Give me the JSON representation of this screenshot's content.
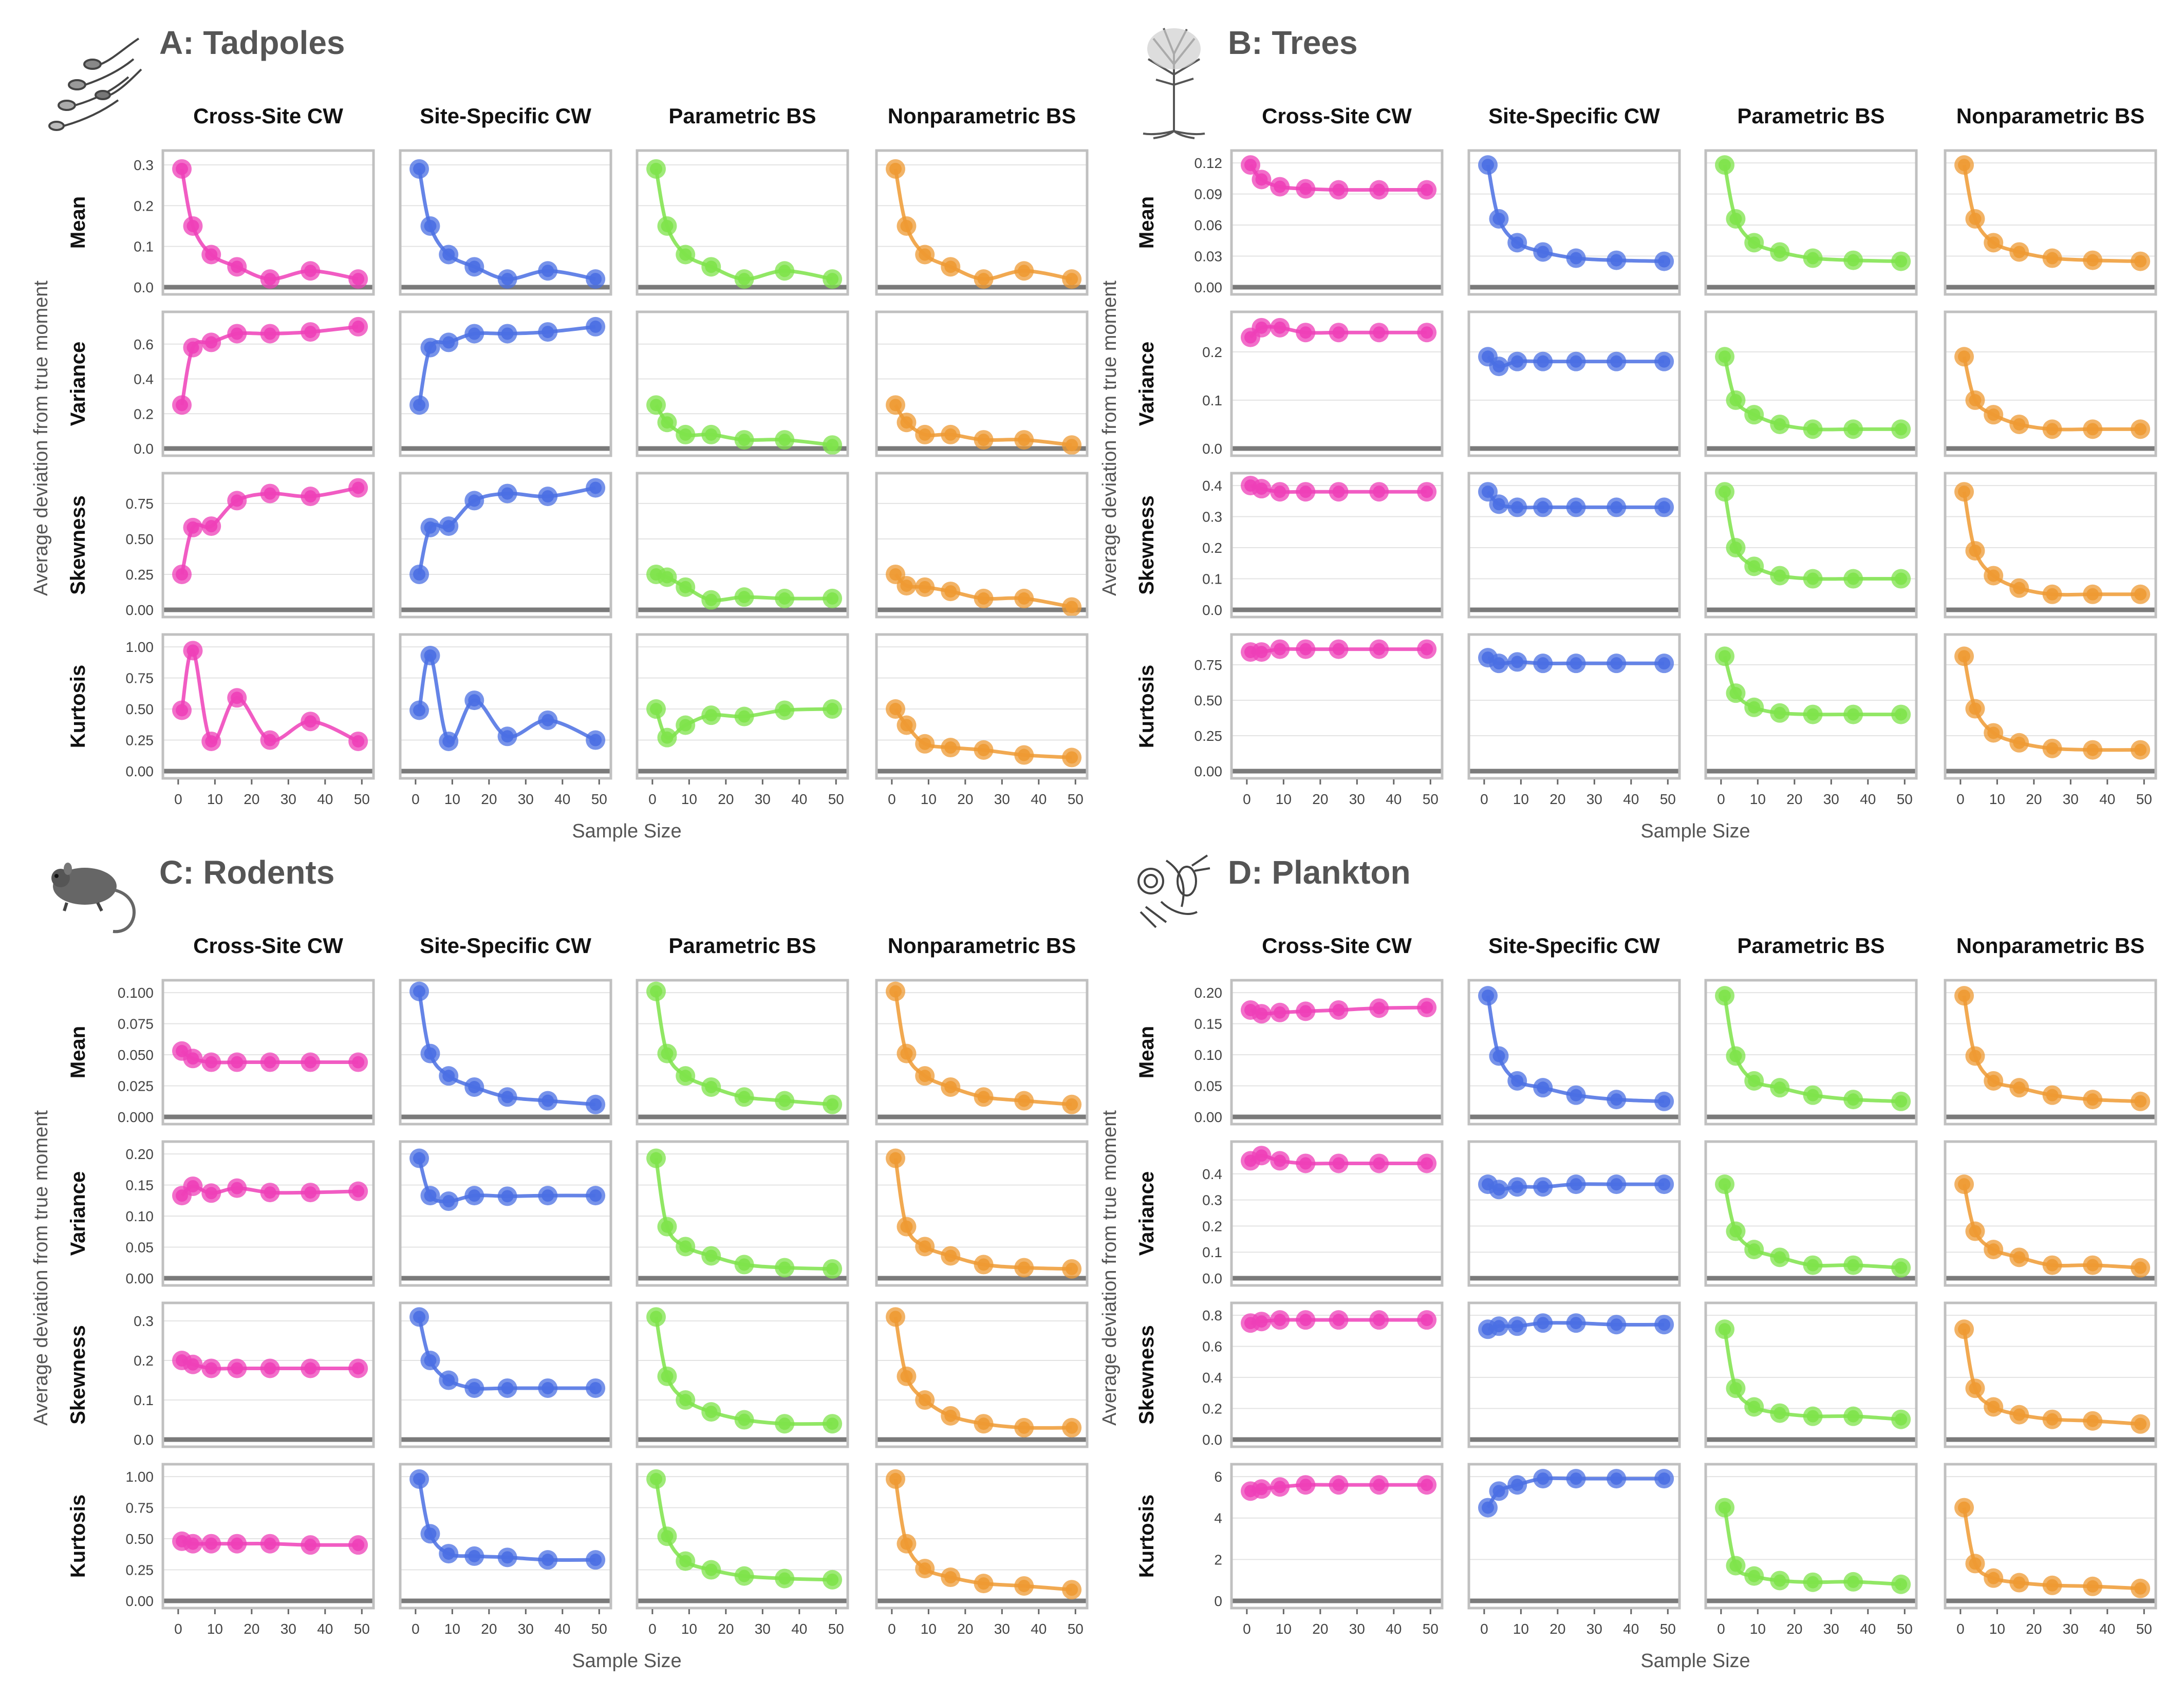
{
  "sample_sizes": [
    1,
    4,
    9,
    16,
    25,
    36,
    49
  ],
  "colors": {
    "Cross-Site CW": "#ee3fb8",
    "Site-Specific CW": "#4a6fe3",
    "Parametric BS": "#7ee34a",
    "Nonparametric BS": "#ee9a33"
  },
  "axes": {
    "x_label": "Sample Size",
    "y_label": "Average deviation from true moment",
    "x_ticks": [
      "0",
      "10",
      "20",
      "30",
      "40",
      "50"
    ]
  },
  "chart_data": [
    {
      "type": "line",
      "title": "A: Tadpoles",
      "icon": "tadpole-icon",
      "columns": [
        "Cross-Site CW",
        "Site-Specific CW",
        "Parametric BS",
        "Nonparametric BS"
      ],
      "rows": [
        {
          "name": "Mean",
          "ylim": [
            0,
            0.32
          ],
          "ticks": [
            0.0,
            0.1,
            0.2,
            0.3
          ],
          "tick_labels": [
            "0.0",
            "0.1",
            "0.2",
            "0.3"
          ],
          "series": [
            [
              0.29,
              0.15,
              0.08,
              0.05,
              0.02,
              0.04,
              0.02
            ],
            [
              0.29,
              0.15,
              0.08,
              0.05,
              0.02,
              0.04,
              0.02
            ],
            [
              0.29,
              0.15,
              0.08,
              0.05,
              0.02,
              0.04,
              0.02
            ],
            [
              0.29,
              0.15,
              0.08,
              0.05,
              0.02,
              0.04,
              0.02
            ]
          ]
        },
        {
          "name": "Variance",
          "ylim": [
            0,
            0.75
          ],
          "ticks": [
            0.0,
            0.2,
            0.4,
            0.6
          ],
          "tick_labels": [
            "0.0",
            "0.2",
            "0.4",
            "0.6"
          ],
          "series": [
            [
              0.25,
              0.58,
              0.61,
              0.66,
              0.66,
              0.67,
              0.7
            ],
            [
              0.25,
              0.58,
              0.61,
              0.66,
              0.66,
              0.67,
              0.7
            ],
            [
              0.25,
              0.15,
              0.08,
              0.08,
              0.05,
              0.05,
              0.02
            ],
            [
              0.25,
              0.15,
              0.08,
              0.08,
              0.05,
              0.05,
              0.02
            ]
          ]
        },
        {
          "name": "Skewness",
          "ylim": [
            0,
            0.92
          ],
          "ticks": [
            0.0,
            0.25,
            0.5,
            0.75
          ],
          "tick_labels": [
            "0.00",
            "0.25",
            "0.50",
            "0.75"
          ],
          "series": [
            [
              0.25,
              0.58,
              0.59,
              0.77,
              0.82,
              0.8,
              0.86
            ],
            [
              0.25,
              0.58,
              0.59,
              0.77,
              0.82,
              0.8,
              0.86
            ],
            [
              0.25,
              0.23,
              0.16,
              0.07,
              0.09,
              0.08,
              0.08
            ],
            [
              0.25,
              0.17,
              0.16,
              0.13,
              0.08,
              0.08,
              0.02
            ]
          ]
        },
        {
          "name": "Kurtosis",
          "ylim": [
            0,
            1.05
          ],
          "ticks": [
            0.0,
            0.25,
            0.5,
            0.75,
            1.0
          ],
          "tick_labels": [
            "0.00",
            "0.25",
            "0.50",
            "0.75",
            "1.00"
          ],
          "series": [
            [
              0.49,
              0.97,
              0.24,
              0.59,
              0.25,
              0.4,
              0.24
            ],
            [
              0.49,
              0.93,
              0.24,
              0.57,
              0.28,
              0.41,
              0.25
            ],
            [
              0.5,
              0.27,
              0.37,
              0.45,
              0.44,
              0.49,
              0.5
            ],
            [
              0.5,
              0.37,
              0.22,
              0.19,
              0.17,
              0.13,
              0.11
            ]
          ]
        }
      ]
    },
    {
      "type": "line",
      "title": "B: Trees",
      "icon": "tree-icon",
      "columns": [
        "Cross-Site CW",
        "Site-Specific CW",
        "Parametric BS",
        "Nonparametric BS"
      ],
      "rows": [
        {
          "name": "Mean",
          "ylim": [
            0,
            0.126
          ],
          "ticks": [
            0.0,
            0.03,
            0.06,
            0.09,
            0.12
          ],
          "tick_labels": [
            "0.00",
            "0.03",
            "0.06",
            "0.09",
            "0.12"
          ],
          "series": [
            [
              0.118,
              0.104,
              0.097,
              0.095,
              0.094,
              0.094,
              0.094
            ],
            [
              0.118,
              0.066,
              0.043,
              0.034,
              0.028,
              0.026,
              0.025
            ],
            [
              0.118,
              0.066,
              0.043,
              0.034,
              0.028,
              0.026,
              0.025
            ],
            [
              0.118,
              0.066,
              0.043,
              0.034,
              0.028,
              0.026,
              0.025
            ]
          ]
        },
        {
          "name": "Variance",
          "ylim": [
            0,
            0.27
          ],
          "ticks": [
            0.0,
            0.1,
            0.2
          ],
          "tick_labels": [
            "0.0",
            "0.1",
            "0.2"
          ],
          "series": [
            [
              0.23,
              0.25,
              0.25,
              0.24,
              0.24,
              0.24,
              0.24
            ],
            [
              0.19,
              0.17,
              0.18,
              0.18,
              0.18,
              0.18,
              0.18
            ],
            [
              0.19,
              0.1,
              0.07,
              0.05,
              0.04,
              0.04,
              0.04
            ],
            [
              0.19,
              0.1,
              0.07,
              0.05,
              0.04,
              0.04,
              0.04
            ]
          ]
        },
        {
          "name": "Skewness",
          "ylim": [
            0,
            0.42
          ],
          "ticks": [
            0.0,
            0.1,
            0.2,
            0.3,
            0.4
          ],
          "tick_labels": [
            "0.0",
            "0.1",
            "0.2",
            "0.3",
            "0.4"
          ],
          "series": [
            [
              0.4,
              0.39,
              0.38,
              0.38,
              0.38,
              0.38,
              0.38
            ],
            [
              0.38,
              0.34,
              0.33,
              0.33,
              0.33,
              0.33,
              0.33
            ],
            [
              0.38,
              0.2,
              0.14,
              0.11,
              0.1,
              0.1,
              0.1
            ],
            [
              0.38,
              0.19,
              0.11,
              0.07,
              0.05,
              0.05,
              0.05
            ]
          ]
        },
        {
          "name": "Kurtosis",
          "ylim": [
            0,
            0.92
          ],
          "ticks": [
            0.0,
            0.25,
            0.5,
            0.75
          ],
          "tick_labels": [
            "0.00",
            "0.25",
            "0.50",
            "0.75"
          ],
          "series": [
            [
              0.84,
              0.84,
              0.86,
              0.86,
              0.86,
              0.86,
              0.86
            ],
            [
              0.8,
              0.76,
              0.77,
              0.76,
              0.76,
              0.76,
              0.76
            ],
            [
              0.81,
              0.55,
              0.45,
              0.41,
              0.4,
              0.4,
              0.4
            ],
            [
              0.81,
              0.44,
              0.27,
              0.2,
              0.16,
              0.15,
              0.15
            ]
          ]
        }
      ]
    },
    {
      "type": "line",
      "title": "C: Rodents",
      "icon": "rodent-icon",
      "columns": [
        "Cross-Site CW",
        "Site-Specific CW",
        "Parametric BS",
        "Nonparametric BS"
      ],
      "rows": [
        {
          "name": "Mean",
          "ylim": [
            0,
            0.105
          ],
          "ticks": [
            0.0,
            0.025,
            0.05,
            0.075,
            0.1
          ],
          "tick_labels": [
            "0.000",
            "0.025",
            "0.050",
            "0.075",
            "0.100"
          ],
          "series": [
            [
              0.053,
              0.047,
              0.044,
              0.044,
              0.044,
              0.044,
              0.044
            ],
            [
              0.101,
              0.051,
              0.033,
              0.024,
              0.016,
              0.013,
              0.01
            ],
            [
              0.101,
              0.051,
              0.033,
              0.024,
              0.016,
              0.013,
              0.01
            ],
            [
              0.101,
              0.051,
              0.033,
              0.024,
              0.016,
              0.013,
              0.01
            ]
          ]
        },
        {
          "name": "Variance",
          "ylim": [
            0,
            0.21
          ],
          "ticks": [
            0.0,
            0.05,
            0.1,
            0.15,
            0.2
          ],
          "tick_labels": [
            "0.00",
            "0.05",
            "0.10",
            "0.15",
            "0.20"
          ],
          "series": [
            [
              0.133,
              0.148,
              0.137,
              0.145,
              0.138,
              0.138,
              0.14
            ],
            [
              0.193,
              0.133,
              0.124,
              0.133,
              0.132,
              0.133,
              0.133
            ],
            [
              0.193,
              0.083,
              0.051,
              0.036,
              0.022,
              0.017,
              0.015
            ],
            [
              0.193,
              0.083,
              0.051,
              0.036,
              0.022,
              0.017,
              0.015
            ]
          ]
        },
        {
          "name": "Skewness",
          "ylim": [
            0,
            0.33
          ],
          "ticks": [
            0.0,
            0.1,
            0.2,
            0.3
          ],
          "tick_labels": [
            "0.0",
            "0.1",
            "0.2",
            "0.3"
          ],
          "series": [
            [
              0.2,
              0.19,
              0.18,
              0.18,
              0.18,
              0.18,
              0.18
            ],
            [
              0.31,
              0.2,
              0.15,
              0.13,
              0.13,
              0.13,
              0.13
            ],
            [
              0.31,
              0.16,
              0.1,
              0.07,
              0.05,
              0.04,
              0.04
            ],
            [
              0.31,
              0.16,
              0.1,
              0.06,
              0.04,
              0.03,
              0.03
            ]
          ]
        },
        {
          "name": "Kurtosis",
          "ylim": [
            0,
            1.05
          ],
          "ticks": [
            0.0,
            0.25,
            0.5,
            0.75,
            1.0
          ],
          "tick_labels": [
            "0.00",
            "0.25",
            "0.50",
            "0.75",
            "1.00"
          ],
          "series": [
            [
              0.48,
              0.46,
              0.46,
              0.46,
              0.46,
              0.45,
              0.45
            ],
            [
              0.98,
              0.54,
              0.38,
              0.36,
              0.35,
              0.33,
              0.33
            ],
            [
              0.98,
              0.52,
              0.32,
              0.25,
              0.2,
              0.18,
              0.17
            ],
            [
              0.98,
              0.46,
              0.26,
              0.19,
              0.14,
              0.12,
              0.09
            ]
          ]
        }
      ]
    },
    {
      "type": "line",
      "title": "D: Plankton",
      "icon": "plankton-icon",
      "columns": [
        "Cross-Site CW",
        "Site-Specific CW",
        "Parametric BS",
        "Nonparametric BS"
      ],
      "rows": [
        {
          "name": "Mean",
          "ylim": [
            0,
            0.21
          ],
          "ticks": [
            0.0,
            0.05,
            0.1,
            0.15,
            0.2
          ],
          "tick_labels": [
            "0.00",
            "0.05",
            "0.10",
            "0.15",
            "0.20"
          ],
          "series": [
            [
              0.172,
              0.166,
              0.168,
              0.17,
              0.172,
              0.175,
              0.176
            ],
            [
              0.195,
              0.098,
              0.058,
              0.047,
              0.035,
              0.028,
              0.025
            ],
            [
              0.195,
              0.098,
              0.058,
              0.047,
              0.035,
              0.028,
              0.025
            ],
            [
              0.195,
              0.098,
              0.058,
              0.047,
              0.035,
              0.028,
              0.025
            ]
          ]
        },
        {
          "name": "Variance",
          "ylim": [
            0,
            0.5
          ],
          "ticks": [
            0.0,
            0.1,
            0.2,
            0.3,
            0.4
          ],
          "tick_labels": [
            "0.0",
            "0.1",
            "0.2",
            "0.3",
            "0.4"
          ],
          "series": [
            [
              0.45,
              0.47,
              0.45,
              0.44,
              0.44,
              0.44,
              0.44
            ],
            [
              0.36,
              0.34,
              0.35,
              0.35,
              0.36,
              0.36,
              0.36
            ],
            [
              0.36,
              0.18,
              0.11,
              0.08,
              0.05,
              0.05,
              0.04
            ],
            [
              0.36,
              0.18,
              0.11,
              0.08,
              0.05,
              0.05,
              0.04
            ]
          ]
        },
        {
          "name": "Skewness",
          "ylim": [
            0,
            0.84
          ],
          "ticks": [
            0.0,
            0.2,
            0.4,
            0.6,
            0.8
          ],
          "tick_labels": [
            "0.0",
            "0.2",
            "0.4",
            "0.6",
            "0.8"
          ],
          "series": [
            [
              0.75,
              0.76,
              0.77,
              0.77,
              0.77,
              0.77,
              0.77
            ],
            [
              0.71,
              0.73,
              0.73,
              0.75,
              0.75,
              0.74,
              0.74
            ],
            [
              0.71,
              0.33,
              0.21,
              0.17,
              0.15,
              0.15,
              0.13
            ],
            [
              0.71,
              0.33,
              0.21,
              0.16,
              0.13,
              0.12,
              0.1
            ]
          ]
        },
        {
          "name": "Kurtosis",
          "ylim": [
            0,
            6.3
          ],
          "ticks": [
            0,
            2,
            4,
            6
          ],
          "tick_labels": [
            "0",
            "2",
            "4",
            "6"
          ],
          "series": [
            [
              5.3,
              5.4,
              5.5,
              5.6,
              5.6,
              5.6,
              5.6
            ],
            [
              4.5,
              5.3,
              5.6,
              5.9,
              5.9,
              5.9,
              5.9
            ],
            [
              4.5,
              1.7,
              1.2,
              0.98,
              0.9,
              0.92,
              0.8
            ],
            [
              4.5,
              1.8,
              1.1,
              0.88,
              0.75,
              0.7,
              0.6
            ]
          ]
        }
      ]
    }
  ]
}
